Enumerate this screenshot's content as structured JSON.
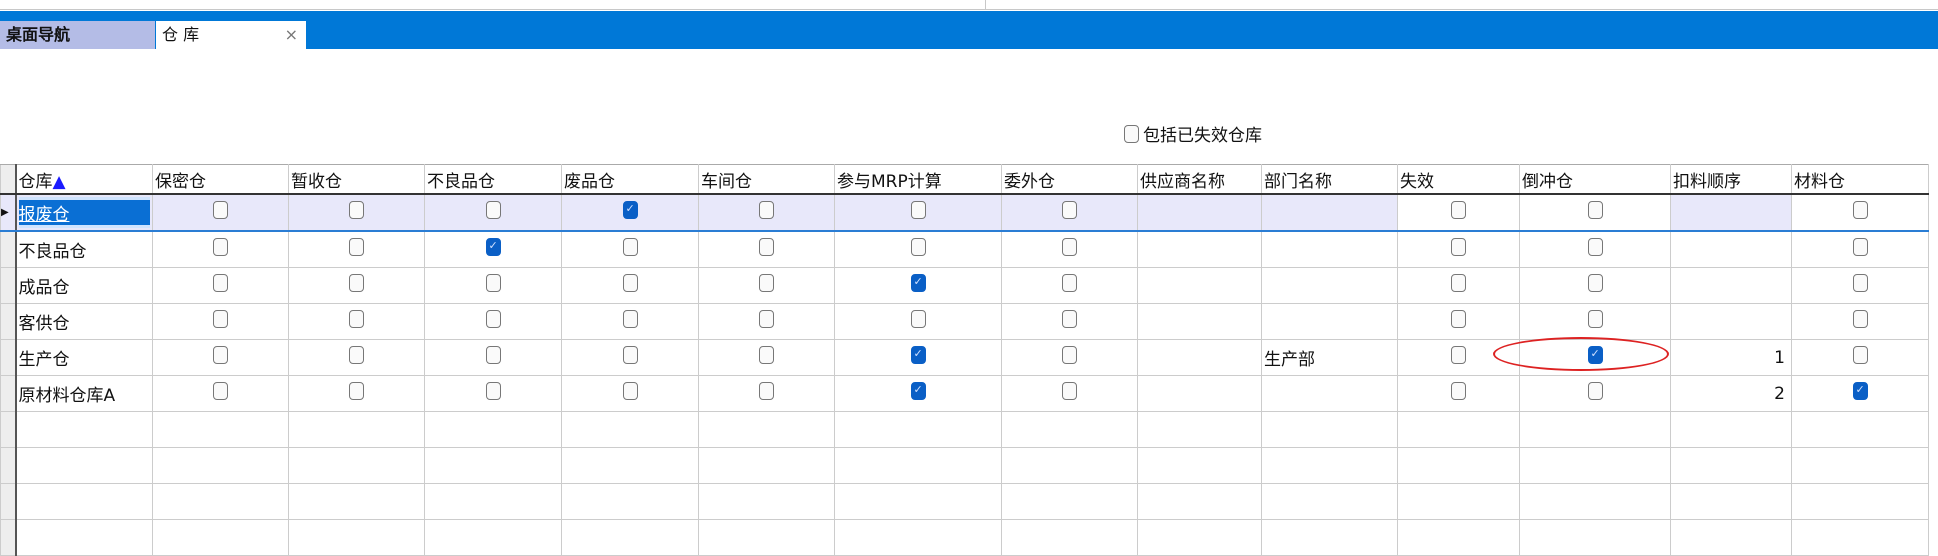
{
  "tabs": [
    {
      "label": "桌面导航"
    },
    {
      "label": "仓 库",
      "close": "×"
    }
  ],
  "filter": {
    "label": "包括已失效仓库",
    "checked": false
  },
  "columns": [
    "仓库",
    "保密仓",
    "暂收仓",
    "不良品仓",
    "废品仓",
    "车间仓",
    "参与MRP计算",
    "委外仓",
    "供应商名称",
    "部门名称",
    "失效",
    "倒冲仓",
    "扣料顺序",
    "材料仓"
  ],
  "sort_indicator": "▲",
  "current_row_marker": "▶",
  "rows": [
    {
      "name": "报废仓",
      "flags": [
        0,
        0,
        0,
        1,
        0,
        0,
        0
      ],
      "supplier": "",
      "dept": "",
      "invalid": 0,
      "backflush": 0,
      "order": "",
      "material": 0
    },
    {
      "name": "不良品仓",
      "flags": [
        0,
        0,
        1,
        0,
        0,
        0,
        0
      ],
      "supplier": "",
      "dept": "",
      "invalid": 0,
      "backflush": 0,
      "order": "",
      "material": 0
    },
    {
      "name": "成品仓",
      "flags": [
        0,
        0,
        0,
        0,
        0,
        1,
        0
      ],
      "supplier": "",
      "dept": "",
      "invalid": 0,
      "backflush": 0,
      "order": "",
      "material": 0
    },
    {
      "name": "客供仓",
      "flags": [
        0,
        0,
        0,
        0,
        0,
        0,
        0
      ],
      "supplier": "",
      "dept": "",
      "invalid": 0,
      "backflush": 0,
      "order": "",
      "material": 0
    },
    {
      "name": "生产仓",
      "flags": [
        0,
        0,
        0,
        0,
        0,
        1,
        0
      ],
      "supplier": "",
      "dept": "生产部",
      "invalid": 0,
      "backflush": 1,
      "order": "1",
      "material": 0
    },
    {
      "name": "原材料仓库A",
      "flags": [
        0,
        0,
        0,
        0,
        0,
        1,
        0
      ],
      "supplier": "",
      "dept": "",
      "invalid": 0,
      "backflush": 0,
      "order": "2",
      "material": 1
    }
  ],
  "empty_rows": 4,
  "colors": {
    "accent": "#0078d7",
    "highlight": "#d22222",
    "checked": "#0a5fc6"
  }
}
